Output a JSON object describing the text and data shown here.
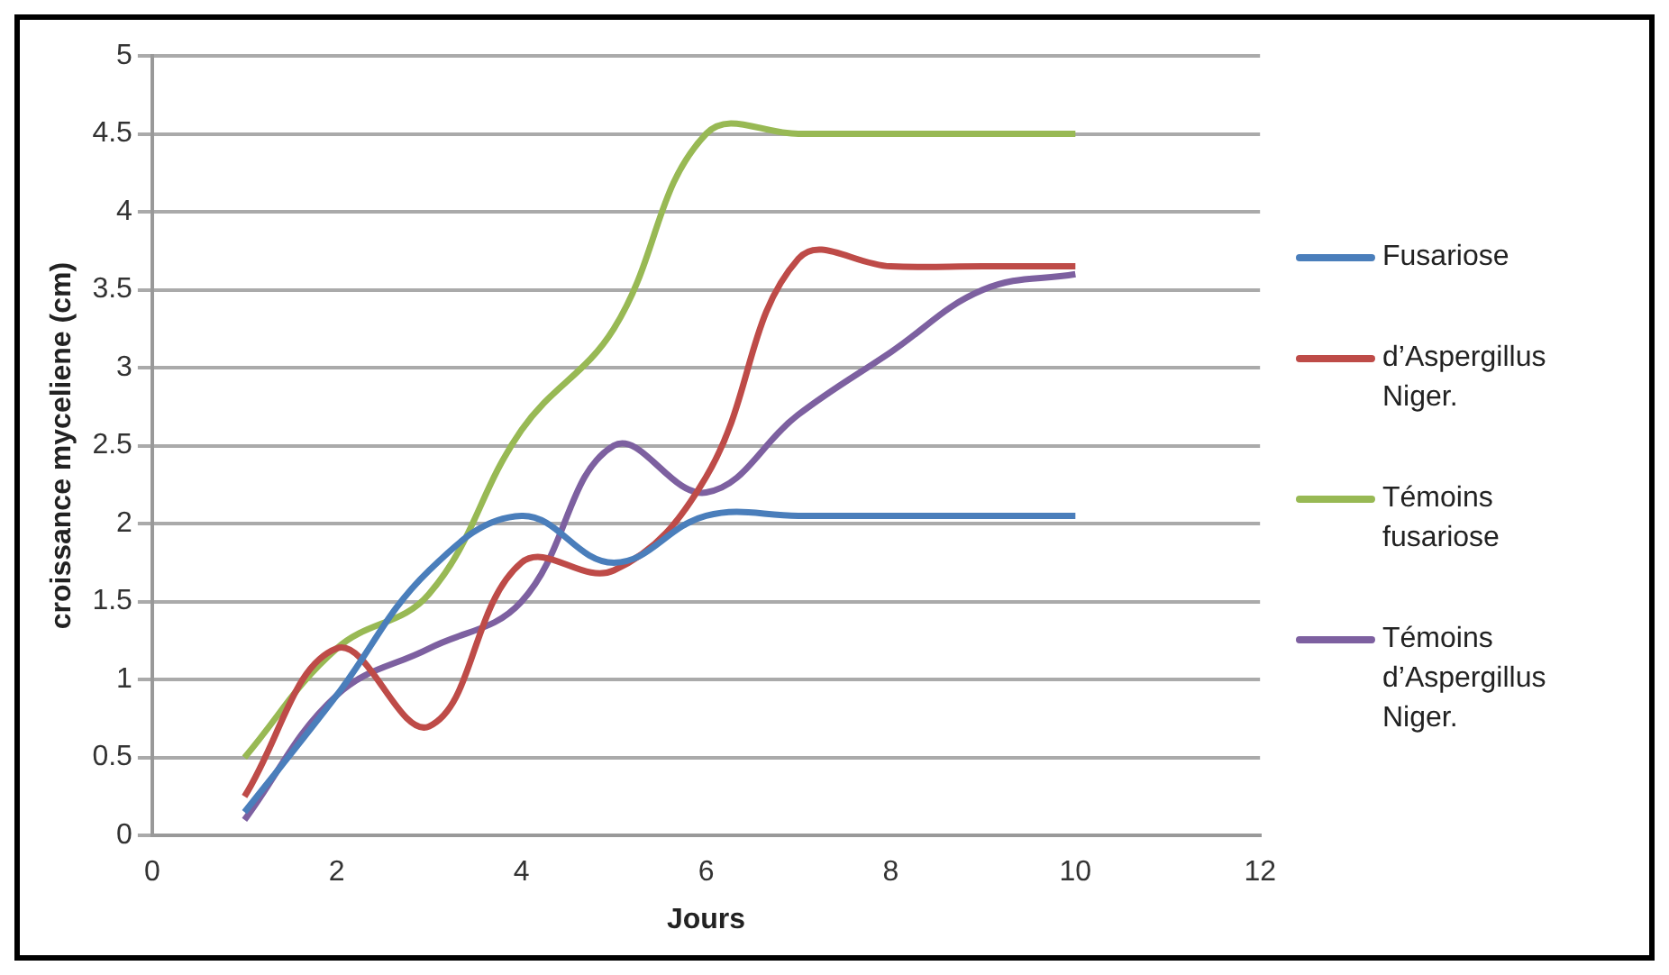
{
  "chart_data": {
    "type": "line",
    "xlabel": "Jours",
    "ylabel": "croissance myceliene (cm)",
    "x": [
      1,
      2,
      3,
      4,
      5,
      6,
      7,
      8,
      9,
      10
    ],
    "series": [
      {
        "name": "Fusariose",
        "color": "#4a7ebb",
        "values": [
          0.15,
          0.9,
          1.7,
          2.05,
          1.75,
          2.05,
          2.05,
          2.05,
          2.05,
          2.05
        ]
      },
      {
        "name": "d’Aspergillus Niger.",
        "color": "#be4b48",
        "values": [
          0.25,
          1.2,
          0.7,
          1.75,
          1.7,
          2.3,
          3.7,
          3.65,
          3.65,
          3.65
        ]
      },
      {
        "name": "Témoins fusariose",
        "color": "#98b954",
        "values": [
          0.5,
          1.2,
          1.55,
          2.6,
          3.25,
          4.5,
          4.5,
          4.5,
          4.5,
          4.5
        ]
      },
      {
        "name": "Témoins d’Aspergillus Niger.",
        "color": "#7d60a0",
        "values": [
          0.1,
          0.9,
          1.2,
          1.5,
          2.5,
          2.2,
          2.7,
          3.1,
          3.5,
          3.6
        ]
      }
    ],
    "xlim": [
      0,
      12
    ],
    "xticks": [
      0,
      2,
      4,
      6,
      8,
      10,
      12
    ],
    "ylim": [
      0,
      5
    ],
    "yticks": [
      0,
      0.5,
      1,
      1.5,
      2,
      2.5,
      3,
      3.5,
      4,
      4.5,
      5
    ],
    "grid": "y",
    "legend": "right",
    "marker": "none",
    "line_style": "solid"
  }
}
